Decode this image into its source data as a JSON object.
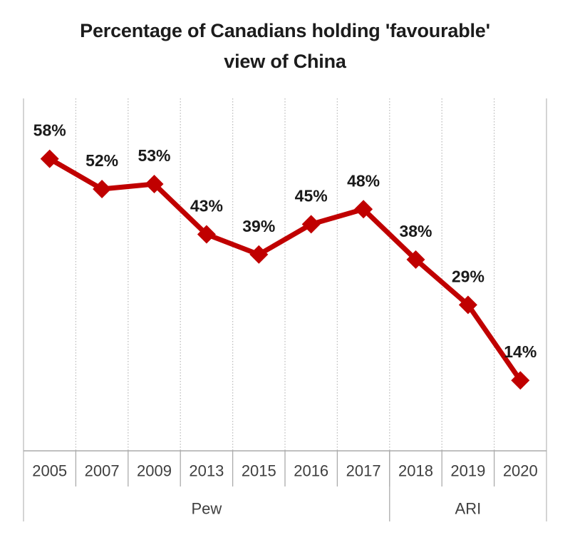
{
  "title_lines": [
    "Percentage of Canadians holding 'favourable'",
    "view of China"
  ],
  "chart_data": {
    "type": "line",
    "title": "Percentage of Canadians holding 'favourable' view of China",
    "categories": [
      "2005",
      "2007",
      "2009",
      "2013",
      "2015",
      "2016",
      "2017",
      "2018",
      "2019",
      "2020"
    ],
    "values": [
      58,
      52,
      53,
      43,
      39,
      45,
      48,
      38,
      29,
      14
    ],
    "data_labels": [
      "58%",
      "52%",
      "53%",
      "43%",
      "39%",
      "45%",
      "48%",
      "38%",
      "29%",
      "14%"
    ],
    "group_axis": [
      {
        "label": "Pew",
        "start": 0,
        "end": 6
      },
      {
        "label": "ARI",
        "start": 7,
        "end": 9
      }
    ],
    "xlabel": "",
    "ylabel": "",
    "ylim": [
      0,
      70
    ],
    "grid": "vertical-dotted",
    "legend": "none",
    "marker": "diamond",
    "series_color": "#c00000",
    "gridline_color": "#bdbdbd",
    "axis_line_color": "#ababab",
    "data_label_color": "#1a1a1a",
    "tick_label_color": "#3f3f3f"
  }
}
